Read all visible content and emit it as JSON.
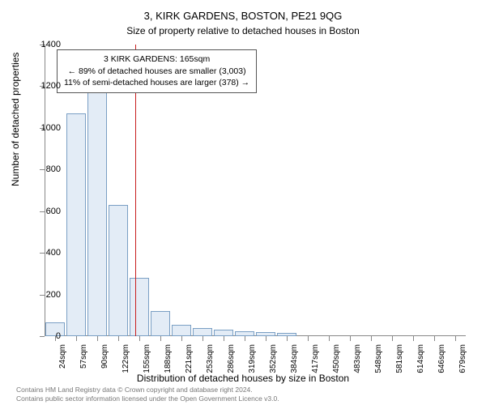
{
  "chart": {
    "type": "histogram",
    "title_main": "3, KIRK GARDENS, BOSTON, PE21 9QG",
    "title_sub": "Size of property relative to detached houses in Boston",
    "ylabel": "Number of detached properties",
    "xlabel": "Distribution of detached houses by size in Boston",
    "background_color": "#ffffff",
    "bar_fill": "#e3ecf6",
    "bar_stroke": "#7a9fc4",
    "marker_color": "#c81e1e",
    "axis_color": "#888888",
    "ylim": [
      0,
      1400
    ],
    "ytick_step": 200,
    "yticks": [
      0,
      200,
      400,
      600,
      800,
      1000,
      1200,
      1400
    ],
    "x_categories": [
      "24sqm",
      "57sqm",
      "90sqm",
      "122sqm",
      "155sqm",
      "188sqm",
      "221sqm",
      "253sqm",
      "286sqm",
      "319sqm",
      "352sqm",
      "384sqm",
      "417sqm",
      "450sqm",
      "483sqm",
      "548sqm",
      "581sqm",
      "614sqm",
      "646sqm",
      "679sqm"
    ],
    "values": [
      65,
      1070,
      1180,
      630,
      280,
      120,
      55,
      40,
      30,
      25,
      20,
      15,
      0,
      0,
      0,
      0,
      0,
      0,
      0,
      0
    ],
    "marker_category_index": 4,
    "info_box": {
      "line1": "3 KIRK GARDENS: 165sqm",
      "line2": "← 89% of detached houses are smaller (3,003)",
      "line3": "11% of semi-detached houses are larger (378) →"
    },
    "footer_line1": "Contains HM Land Registry data © Crown copyright and database right 2024.",
    "footer_line2": "Contains public sector information licensed under the Open Government Licence v3.0."
  }
}
